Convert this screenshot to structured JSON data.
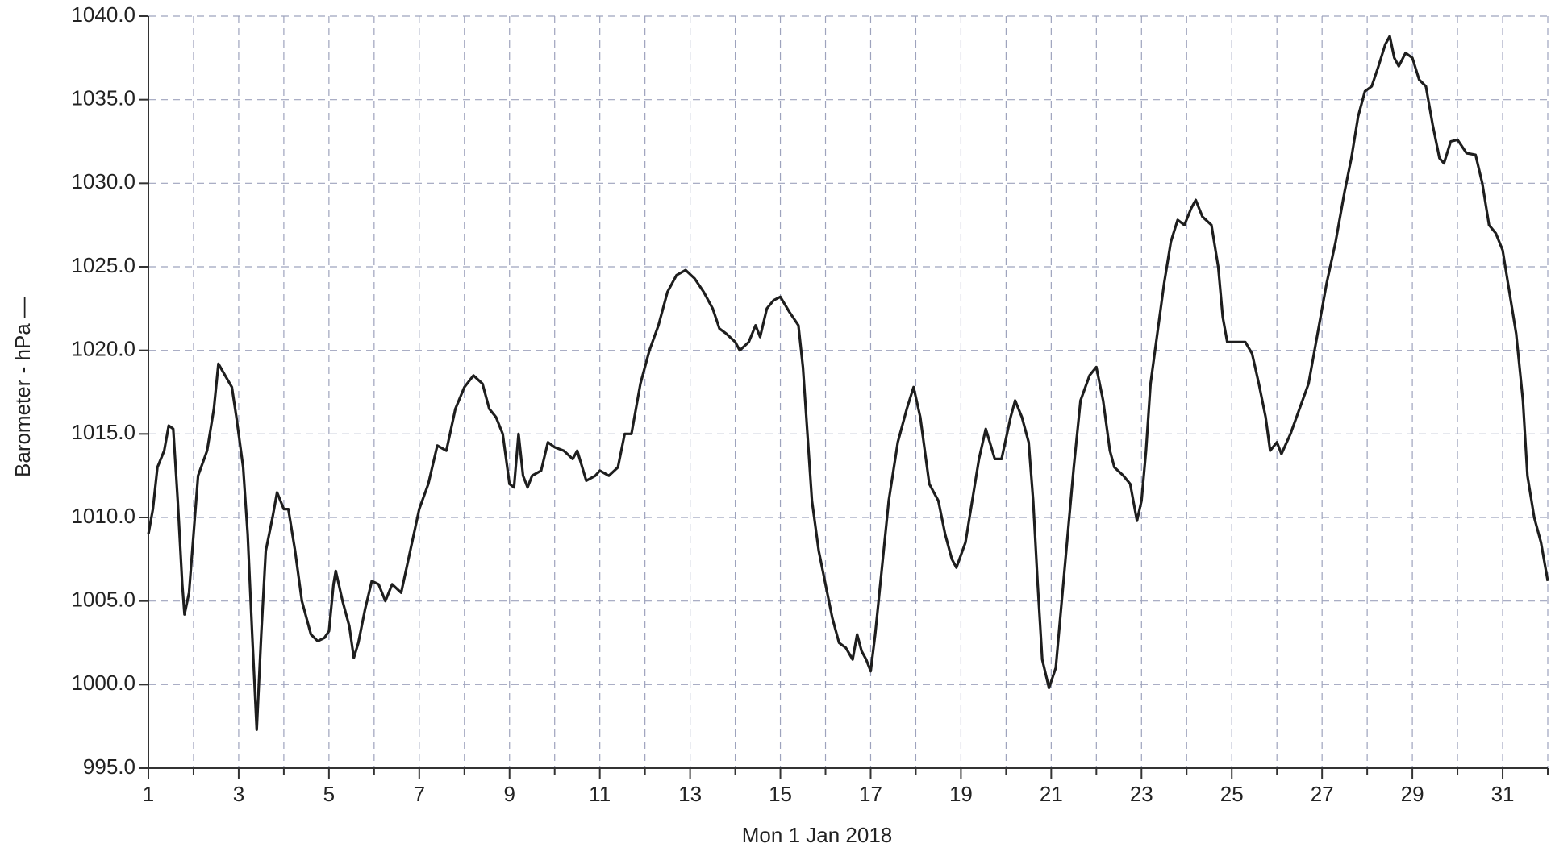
{
  "chart_data": {
    "type": "line",
    "ylabel": "Barometer - hPa —",
    "xlabel": "Mon 1 Jan 2018",
    "color": "#1e1e1e",
    "grid": true,
    "xlim": [
      1,
      32
    ],
    "ylim": [
      995,
      1040
    ],
    "xticks": [
      1,
      3,
      5,
      7,
      9,
      11,
      13,
      15,
      17,
      19,
      21,
      23,
      25,
      27,
      29,
      31
    ],
    "xminor": [
      2,
      4,
      6,
      8,
      10,
      12,
      14,
      16,
      18,
      20,
      22,
      24,
      26,
      28,
      30,
      32
    ],
    "yticks": [
      {
        "value": 995,
        "label": "995.0"
      },
      {
        "value": 1000,
        "label": "1000.0"
      },
      {
        "value": 1005,
        "label": "1005.0"
      },
      {
        "value": 1010,
        "label": "1010.0"
      },
      {
        "value": 1015,
        "label": "1015.0"
      },
      {
        "value": 1020,
        "label": "1020.0"
      },
      {
        "value": 1025,
        "label": "1025.0"
      },
      {
        "value": 1030,
        "label": "1030.0"
      },
      {
        "value": 1035,
        "label": "1035.0"
      },
      {
        "value": 1040,
        "label": "1040.0"
      }
    ],
    "x": [
      1.0,
      1.1,
      1.2,
      1.35,
      1.45,
      1.55,
      1.65,
      1.75,
      1.8,
      1.9,
      2.0,
      2.1,
      2.3,
      2.45,
      2.55,
      2.7,
      2.85,
      2.95,
      3.1,
      3.2,
      3.3,
      3.4,
      3.5,
      3.6,
      3.75,
      3.85,
      4.0,
      4.1,
      4.25,
      4.4,
      4.6,
      4.75,
      4.9,
      5.0,
      5.1,
      5.15,
      5.3,
      5.45,
      5.55,
      5.65,
      5.8,
      5.95,
      6.1,
      6.25,
      6.4,
      6.6,
      6.8,
      7.0,
      7.2,
      7.4,
      7.6,
      7.8,
      8.0,
      8.2,
      8.4,
      8.55,
      8.7,
      8.85,
      9.0,
      9.1,
      9.2,
      9.3,
      9.4,
      9.5,
      9.7,
      9.85,
      10.0,
      10.2,
      10.4,
      10.5,
      10.7,
      10.9,
      11.0,
      11.2,
      11.4,
      11.55,
      11.7,
      11.9,
      12.1,
      12.3,
      12.5,
      12.7,
      12.9,
      13.1,
      13.3,
      13.5,
      13.65,
      13.8,
      14.0,
      14.1,
      14.3,
      14.45,
      14.55,
      14.7,
      14.85,
      15.0,
      15.2,
      15.4,
      15.5,
      15.6,
      15.7,
      15.85,
      16.0,
      16.15,
      16.3,
      16.45,
      16.6,
      16.7,
      16.8,
      16.9,
      17.0,
      17.1,
      17.25,
      17.4,
      17.6,
      17.8,
      17.95,
      18.1,
      18.3,
      18.5,
      18.65,
      18.8,
      18.9,
      19.1,
      19.25,
      19.4,
      19.55,
      19.75,
      19.9,
      20.1,
      20.2,
      20.35,
      20.5,
      20.6,
      20.7,
      20.8,
      20.95,
      21.1,
      21.3,
      21.5,
      21.65,
      21.85,
      22.0,
      22.15,
      22.3,
      22.4,
      22.6,
      22.75,
      22.9,
      23.0,
      23.1,
      23.2,
      23.35,
      23.5,
      23.65,
      23.8,
      23.95,
      24.1,
      24.2,
      24.35,
      24.55,
      24.7,
      24.8,
      24.9,
      25.1,
      25.3,
      25.45,
      25.6,
      25.75,
      25.85,
      26.0,
      26.1,
      26.3,
      26.5,
      26.7,
      26.9,
      27.1,
      27.3,
      27.5,
      27.65,
      27.8,
      27.95,
      28.1,
      28.25,
      28.4,
      28.5,
      28.6,
      28.7,
      28.85,
      29.0,
      29.15,
      29.3,
      29.45,
      29.6,
      29.7,
      29.85,
      30.0,
      30.2,
      30.4,
      30.55,
      30.7,
      30.85,
      31.0,
      31.15,
      31.3,
      31.45,
      31.55,
      31.7,
      31.85,
      32.0
    ],
    "values": [
      1009,
      1010.5,
      1013,
      1014,
      1015.5,
      1015.3,
      1011,
      1006,
      1004.2,
      1005.5,
      1009,
      1012.5,
      1014,
      1016.5,
      1019.2,
      1018.5,
      1017.8,
      1016,
      1013,
      1009,
      1003,
      997.3,
      1003,
      1008,
      1010,
      1011.5,
      1010.5,
      1010.5,
      1008,
      1005,
      1003,
      1002.6,
      1002.8,
      1003.2,
      1006,
      1006.8,
      1005,
      1003.5,
      1001.6,
      1002.5,
      1004.5,
      1006.2,
      1006,
      1005,
      1006,
      1005.5,
      1008,
      1010.5,
      1012,
      1014.3,
      1014,
      1016.5,
      1017.8,
      1018.5,
      1018,
      1016.5,
      1016,
      1015,
      1012,
      1011.8,
      1015,
      1012.5,
      1011.8,
      1012.5,
      1012.8,
      1014.5,
      1014.2,
      1014,
      1013.5,
      1014,
      1012.2,
      1012.5,
      1012.8,
      1012.5,
      1013,
      1015,
      1015,
      1018,
      1020,
      1021.5,
      1023.5,
      1024.5,
      1024.8,
      1024.3,
      1023.5,
      1022.5,
      1021.3,
      1021,
      1020.5,
      1020,
      1020.5,
      1021.5,
      1020.8,
      1022.5,
      1023,
      1023.2,
      1022.3,
      1021.5,
      1019,
      1015,
      1011,
      1008,
      1006,
      1004,
      1002.5,
      1002.2,
      1001.5,
      1003,
      1002,
      1001.5,
      1000.8,
      1003,
      1007,
      1011,
      1014.5,
      1016.5,
      1017.8,
      1016,
      1012,
      1011,
      1009,
      1007.5,
      1007,
      1008.5,
      1011,
      1013.5,
      1015.3,
      1013.5,
      1013.5,
      1016,
      1017,
      1016,
      1014.5,
      1011,
      1006,
      1001.5,
      999.8,
      1001,
      1007,
      1013,
      1017,
      1018.5,
      1019,
      1017,
      1014,
      1013,
      1012.5,
      1012,
      1009.8,
      1011,
      1014,
      1018,
      1021,
      1024,
      1026.5,
      1027.8,
      1027.5,
      1028.5,
      1029,
      1028,
      1027.5,
      1025,
      1022,
      1020.5,
      1020.5,
      1020.5,
      1019.8,
      1018,
      1016,
      1014,
      1014.5,
      1013.8,
      1015,
      1016.5,
      1018,
      1021,
      1024,
      1026.5,
      1029.5,
      1031.5,
      1034,
      1035.5,
      1035.8,
      1037,
      1038.3,
      1038.8,
      1037.5,
      1037,
      1037.8,
      1037.5,
      1036.2,
      1035.8,
      1033.5,
      1031.5,
      1031.2,
      1032.5,
      1032.6,
      1031.8,
      1031.7,
      1030,
      1027.5,
      1027,
      1026,
      1023.5,
      1021,
      1017,
      1012.5,
      1010,
      1008.5,
      1006.2
    ]
  }
}
